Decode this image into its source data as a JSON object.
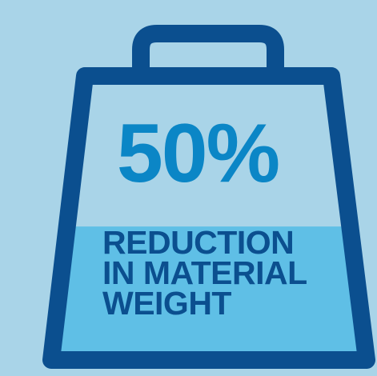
{
  "infographic": {
    "icon": "kettlebell-weight-icon",
    "percent": "50%",
    "caption_lines": [
      "REDUCTION",
      "IN MATERIAL",
      "WEIGHT"
    ],
    "fill_level": 0.47,
    "colors": {
      "background": "#a9d4e8",
      "outline": "#0b4f8f",
      "upper_fill": "#a9d4e8",
      "lower_fill": "#5fbfe6",
      "percent_text": "#0b86c6",
      "caption_text": "#0b4f8f"
    }
  }
}
